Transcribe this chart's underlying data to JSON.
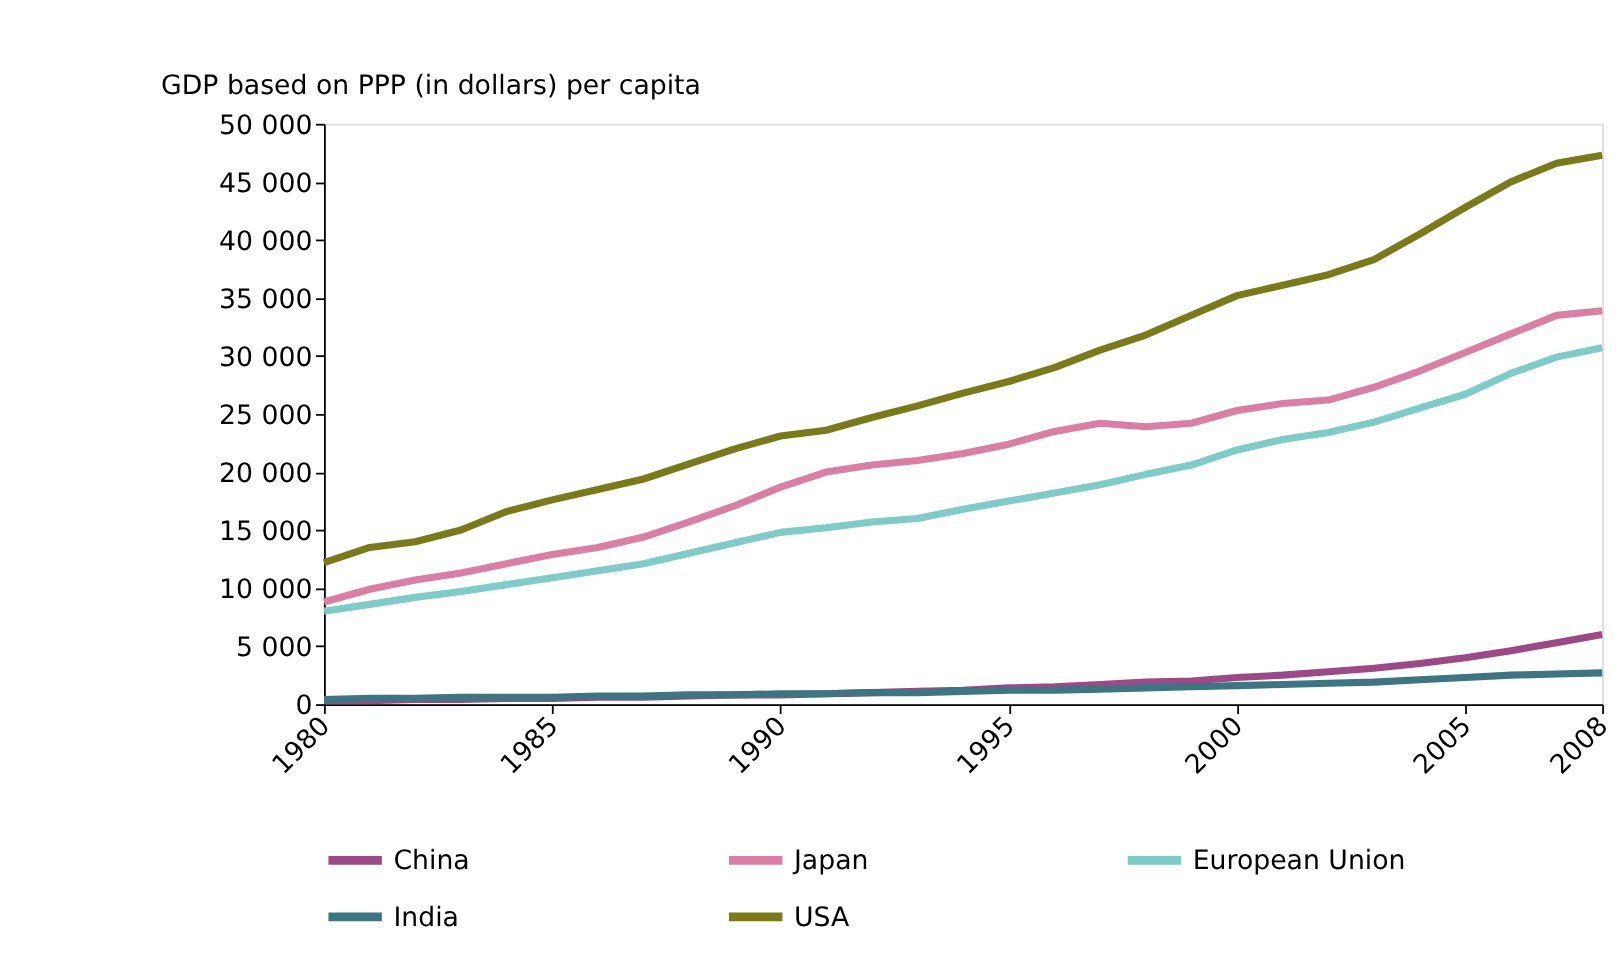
{
  "chart_data": {
    "type": "line",
    "ylabel": "GDP based on PPP (in dollars) per capita",
    "x": [
      1980,
      1981,
      1982,
      1983,
      1984,
      1985,
      1986,
      1987,
      1988,
      1989,
      1990,
      1991,
      1992,
      1993,
      1994,
      1995,
      1996,
      1997,
      1998,
      1999,
      2000,
      2001,
      2002,
      2003,
      2004,
      2005,
      2006,
      2007,
      2008
    ],
    "xlim": [
      1980,
      2008
    ],
    "xticks": [
      1980,
      1985,
      1990,
      1995,
      2000,
      2005,
      2008
    ],
    "ylim": [
      0,
      50000
    ],
    "yticks": [
      {
        "value": 0,
        "label": "0"
      },
      {
        "value": 5000,
        "label": "5 000"
      },
      {
        "value": 10000,
        "label": "10 000"
      },
      {
        "value": 15000,
        "label": "15 000"
      },
      {
        "value": 20000,
        "label": "20 000"
      },
      {
        "value": 25000,
        "label": "25 000"
      },
      {
        "value": 30000,
        "label": "30 000"
      },
      {
        "value": 35000,
        "label": "35 000"
      },
      {
        "value": 40000,
        "label": "40 000"
      },
      {
        "value": 45000,
        "label": "45 000"
      },
      {
        "value": 50000,
        "label": "50 000"
      }
    ],
    "grid": false,
    "legend": "bottom",
    "marker": "none",
    "line_style": "solid",
    "series": [
      {
        "name": "China",
        "color": "#9b4a87",
        "values": [
          300,
          300,
          400,
          400,
          500,
          500,
          600,
          600,
          700,
          800,
          800,
          900,
          1000,
          1100,
          1200,
          1400,
          1500,
          1700,
          1900,
          2000,
          2300,
          2500,
          2800,
          3100,
          3500,
          4000,
          4600,
          5300,
          6000
        ]
      },
      {
        "name": "Japan",
        "color": "#d97fa4",
        "values": [
          8800,
          9900,
          10700,
          11300,
          12100,
          12900,
          13500,
          14400,
          15700,
          17100,
          18700,
          20000,
          20600,
          21000,
          21600,
          22400,
          23500,
          24200,
          23900,
          24200,
          25300,
          25900,
          26200,
          27300,
          28700,
          30300,
          31900,
          33500,
          33900
        ]
      },
      {
        "name": "European Union",
        "color": "#7fcbc8",
        "values": [
          8000,
          8600,
          9200,
          9700,
          10300,
          10900,
          11500,
          12100,
          13000,
          13900,
          14800,
          15200,
          15700,
          16000,
          16800,
          17500,
          18200,
          18900,
          19800,
          20600,
          21900,
          22800,
          23400,
          24300,
          25500,
          26700,
          28500,
          29900,
          30700
        ]
      },
      {
        "name": "India",
        "color": "#3f7483",
        "values": [
          400,
          500,
          500,
          600,
          600,
          600,
          700,
          700,
          800,
          800,
          900,
          900,
          1000,
          1000,
          1100,
          1200,
          1200,
          1300,
          1400,
          1500,
          1600,
          1700,
          1800,
          1900,
          2100,
          2300,
          2500,
          2600,
          2700
        ]
      },
      {
        "name": "USA",
        "color": "#7a7a1c",
        "values": [
          12200,
          13500,
          14000,
          15000,
          16600,
          17600,
          18500,
          19400,
          20700,
          22000,
          23100,
          23600,
          24700,
          25700,
          26800,
          27800,
          29000,
          30500,
          31800,
          33500,
          35200,
          36100,
          37000,
          38300,
          40500,
          42800,
          45000,
          46600,
          47300
        ]
      }
    ]
  }
}
